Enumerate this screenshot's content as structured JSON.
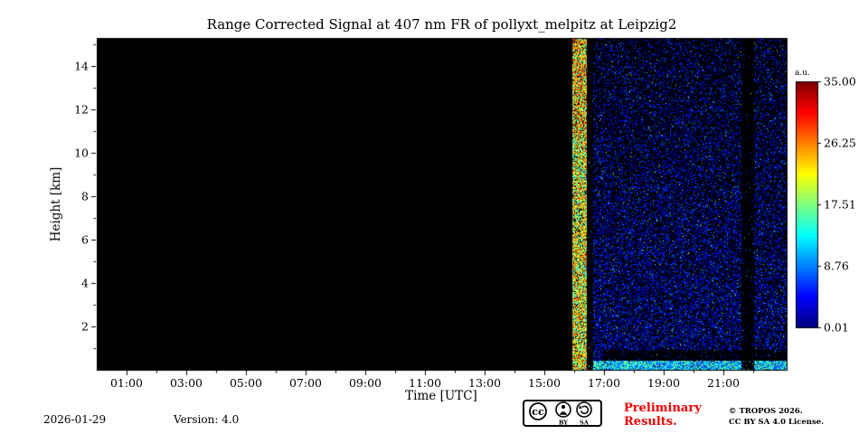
{
  "figure": {
    "title": "Range Corrected Signal at 407 nm FR of pollyxt_melpitz at Leipzig2"
  },
  "colors": {
    "preliminary_red": "#ee0000",
    "plot_background": "#000000",
    "text": "#000000"
  },
  "chart_data": {
    "type": "heatmap",
    "title": "Range Corrected Signal at 407 nm FR of pollyxt_melpitz at Leipzig2",
    "xlabel": "Time [UTC]",
    "ylabel": "Height [km]",
    "x_tick_labels": [
      "01:00",
      "03:00",
      "05:00",
      "07:00",
      "09:00",
      "11:00",
      "13:00",
      "15:00",
      "17:00",
      "19:00",
      "21:00"
    ],
    "x_tick_hours": [
      1,
      3,
      5,
      7,
      9,
      11,
      13,
      15,
      17,
      19,
      21
    ],
    "y_tick_labels": [
      "2",
      "4",
      "6",
      "8",
      "10",
      "12",
      "14"
    ],
    "y_tick_km": [
      2,
      4,
      6,
      8,
      10,
      12,
      14
    ],
    "x_range_hours": [
      0,
      23.12
    ],
    "y_range_km": [
      0,
      15.3
    ],
    "grid": false,
    "background": "#000000",
    "seed": 20260129,
    "colorbar": {
      "label": "a.u.",
      "tick_labels": [
        "35.00",
        "26.25",
        "17.51",
        "8.76",
        "0.01"
      ],
      "tick_values": [
        35.0,
        26.25,
        17.51,
        8.76,
        0.01
      ],
      "vmin": 0.01,
      "vmax": 35.0,
      "colormap": "jet",
      "position": "right"
    },
    "data_description": {
      "note": "Lidar quicklook: no signal (black) from 00:00 until ~15:56 UTC; noisy speckled signal afterwards until ~23:07 UTC.",
      "measurement": {
        "t_start": 15.93,
        "t_end": 23.12
      },
      "background_noise": {
        "note": "sparse blue speckle, denser at low altitude",
        "density_0km": 0.45,
        "density_15km": 0.22,
        "v": [
          0.03,
          0.28
        ],
        "bright_prob": 0.015,
        "bright_v": [
          0.35,
          0.65
        ]
      },
      "bright_column": {
        "note": "strong green/yellow full-height column right after switch-on ~16:00 UTC",
        "t": [
          15.93,
          16.42
        ],
        "density": 0.85,
        "v": [
          0.3,
          0.85
        ]
      },
      "post_column_gap": {
        "note": "dark vertical gap after bright column",
        "t": [
          16.42,
          16.62
        ],
        "factor": 0.12
      },
      "surface_layer": {
        "note": "bright near-surface aerosol layer below ~0.4 km",
        "t": [
          16.42,
          23.12
        ],
        "h_top": 0.42,
        "density": 0.95,
        "v": [
          0.15,
          0.55
        ]
      },
      "surface_gap": {
        "note": "darker lane just above surface layer",
        "t": [
          16.95,
          23.12
        ],
        "h_top": 0.95,
        "density": 0.07
      },
      "attenuated_band": {
        "note": "dark vertical band ~21:35-22:00 UTC",
        "t": [
          21.58,
          22.02
        ],
        "factor": 0.12
      }
    }
  },
  "footer": {
    "date": "2026-01-29",
    "version": "Version: 4.0",
    "preliminary_line1": "Preliminary",
    "preliminary_line2": "Results.",
    "copyright": "© TROPOS 2026.",
    "license": "CC BY SA 4.0 License.",
    "badge": {
      "cc": "cc",
      "by": "BY",
      "sa": "SA"
    }
  }
}
